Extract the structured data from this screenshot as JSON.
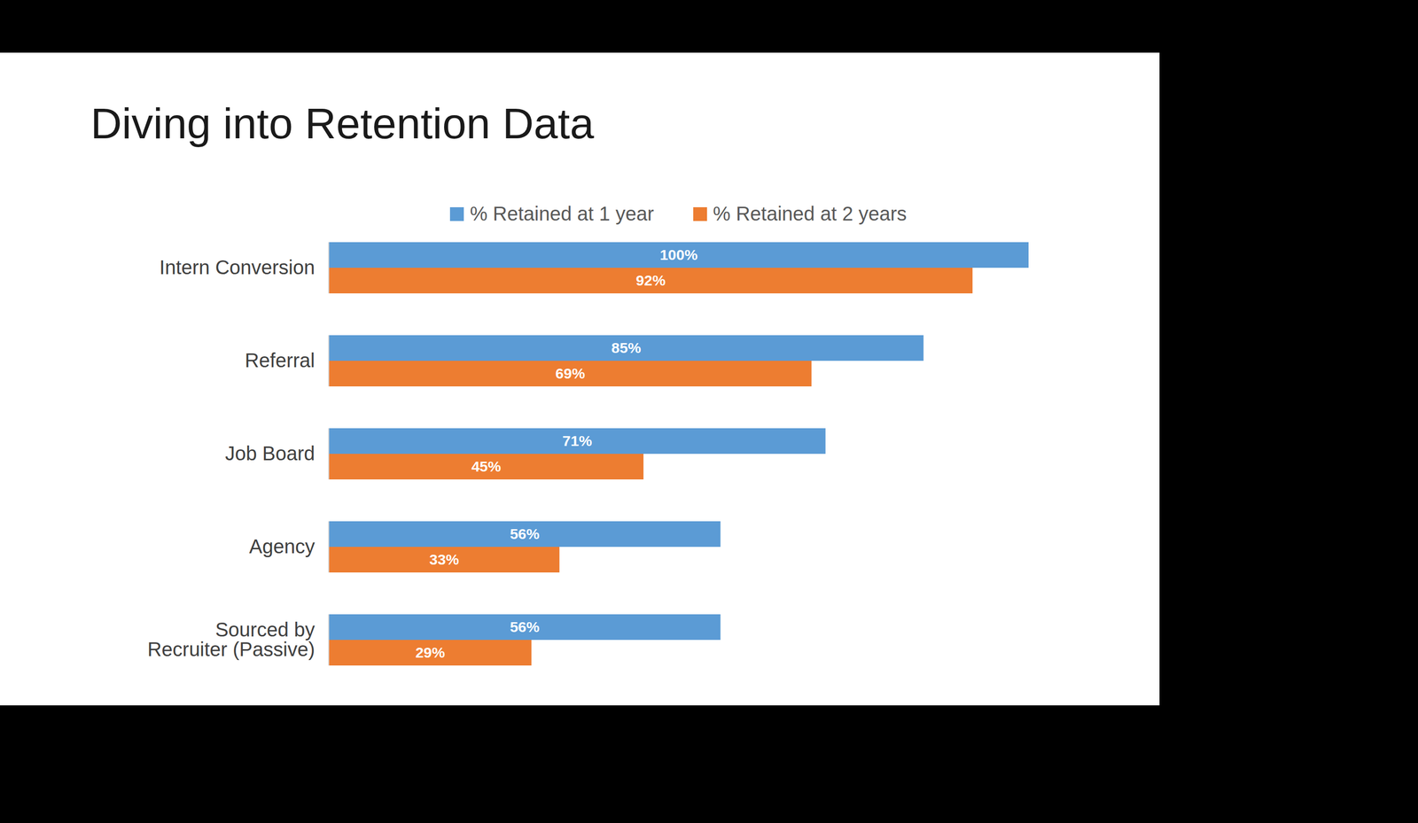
{
  "chart_data": {
    "type": "bar",
    "title": "Diving into Retention Data",
    "orientation": "horizontal",
    "categories": [
      "Intern Conversion",
      "Referral",
      "Job Board",
      "Agency",
      "Sourced by Recruiter (Passive)"
    ],
    "series": [
      {
        "name": "% Retained at 1 year",
        "color": "#5b9bd5",
        "values": [
          100,
          85,
          71,
          56,
          56
        ],
        "value_labels": [
          "100%",
          "85%",
          "71%",
          "56%",
          "56%"
        ]
      },
      {
        "name": "% Retained at 2 years",
        "color": "#ed7d31",
        "values": [
          92,
          69,
          45,
          33,
          29
        ],
        "value_labels": [
          "92%",
          "69%",
          "45%",
          "33%",
          "29%"
        ]
      }
    ],
    "xlim": [
      0,
      100
    ],
    "data_labels": true,
    "tick_labels": "y",
    "legend": "top",
    "grid": false
  }
}
